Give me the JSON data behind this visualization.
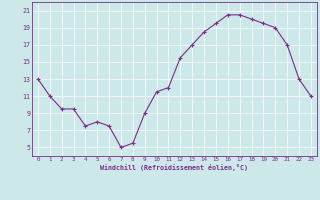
{
  "x": [
    0,
    1,
    2,
    3,
    4,
    5,
    6,
    7,
    8,
    9,
    10,
    11,
    12,
    13,
    14,
    15,
    16,
    17,
    18,
    19,
    20,
    21,
    22,
    23
  ],
  "y": [
    13,
    11,
    9.5,
    9.5,
    7.5,
    8,
    7.5,
    5,
    5.5,
    9,
    11.5,
    12,
    15.5,
    17,
    18.5,
    19.5,
    20.5,
    20.5,
    20,
    19.5,
    19,
    17,
    13,
    11
  ],
  "line_color": "#7b2d8b",
  "marker": "+",
  "bg_color": "#cce8e8",
  "grid_color": "#ffffff",
  "xlabel": "Windchill (Refroidissement éolien,°C)",
  "ylabel_ticks": [
    5,
    7,
    9,
    11,
    13,
    15,
    17,
    19,
    21
  ],
  "xtick_labels": [
    "0",
    "1",
    "2",
    "3",
    "4",
    "5",
    "6",
    "7",
    "8",
    "9",
    "10",
    "11",
    "12",
    "13",
    "14",
    "15",
    "16",
    "17",
    "18",
    "19",
    "20",
    "21",
    "22",
    "23"
  ],
  "xlim": [
    -0.5,
    23.5
  ],
  "ylim": [
    4.0,
    22.0
  ]
}
